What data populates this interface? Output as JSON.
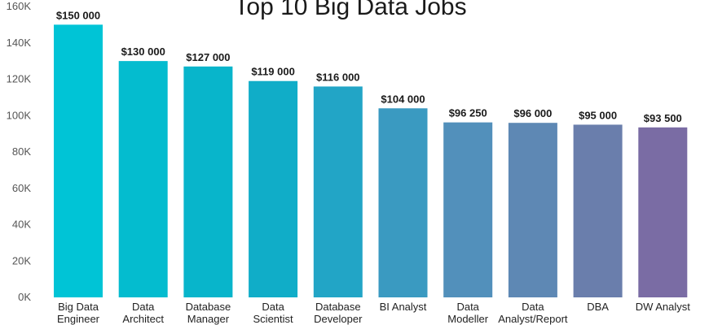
{
  "chart_data": {
    "type": "bar",
    "title": "Top 10 Big Data Jobs",
    "xlabel": "",
    "ylabel": "",
    "ylim": [
      0,
      160000
    ],
    "yticks": [
      0,
      20000,
      40000,
      60000,
      80000,
      100000,
      120000,
      140000,
      160000
    ],
    "ytick_labels": [
      "0K",
      "20K",
      "40K",
      "60K",
      "80K",
      "100K",
      "120K",
      "140K",
      "160K"
    ],
    "grid": false,
    "categories": [
      [
        "Big Data",
        "Engineer"
      ],
      [
        "Data",
        "Architect"
      ],
      [
        "Database",
        "Manager"
      ],
      [
        "Data",
        "Scientist"
      ],
      [
        "Database",
        "Developer"
      ],
      [
        "BI Analyst"
      ],
      [
        "Data",
        "Modeller"
      ],
      [
        "Data",
        "Analyst/Report"
      ],
      [
        "DBA"
      ],
      [
        "DW Analyst"
      ]
    ],
    "values": [
      150000,
      130000,
      127000,
      119000,
      116000,
      104000,
      96250,
      96000,
      95000,
      93500
    ],
    "data_labels": [
      "$150 000",
      "$130 000",
      "$127 000",
      "$119 000",
      "$116 000",
      "$104 000",
      "$96 250",
      "$96 000",
      "$95 000",
      "$93 500"
    ],
    "colors": [
      "#00c4d6",
      "#04bccf",
      "#08b5cb",
      "#10adc8",
      "#22a5c6",
      "#3a9ac1",
      "#5290bb",
      "#5e88b4",
      "#6a7eac",
      "#7a6ca4"
    ]
  }
}
